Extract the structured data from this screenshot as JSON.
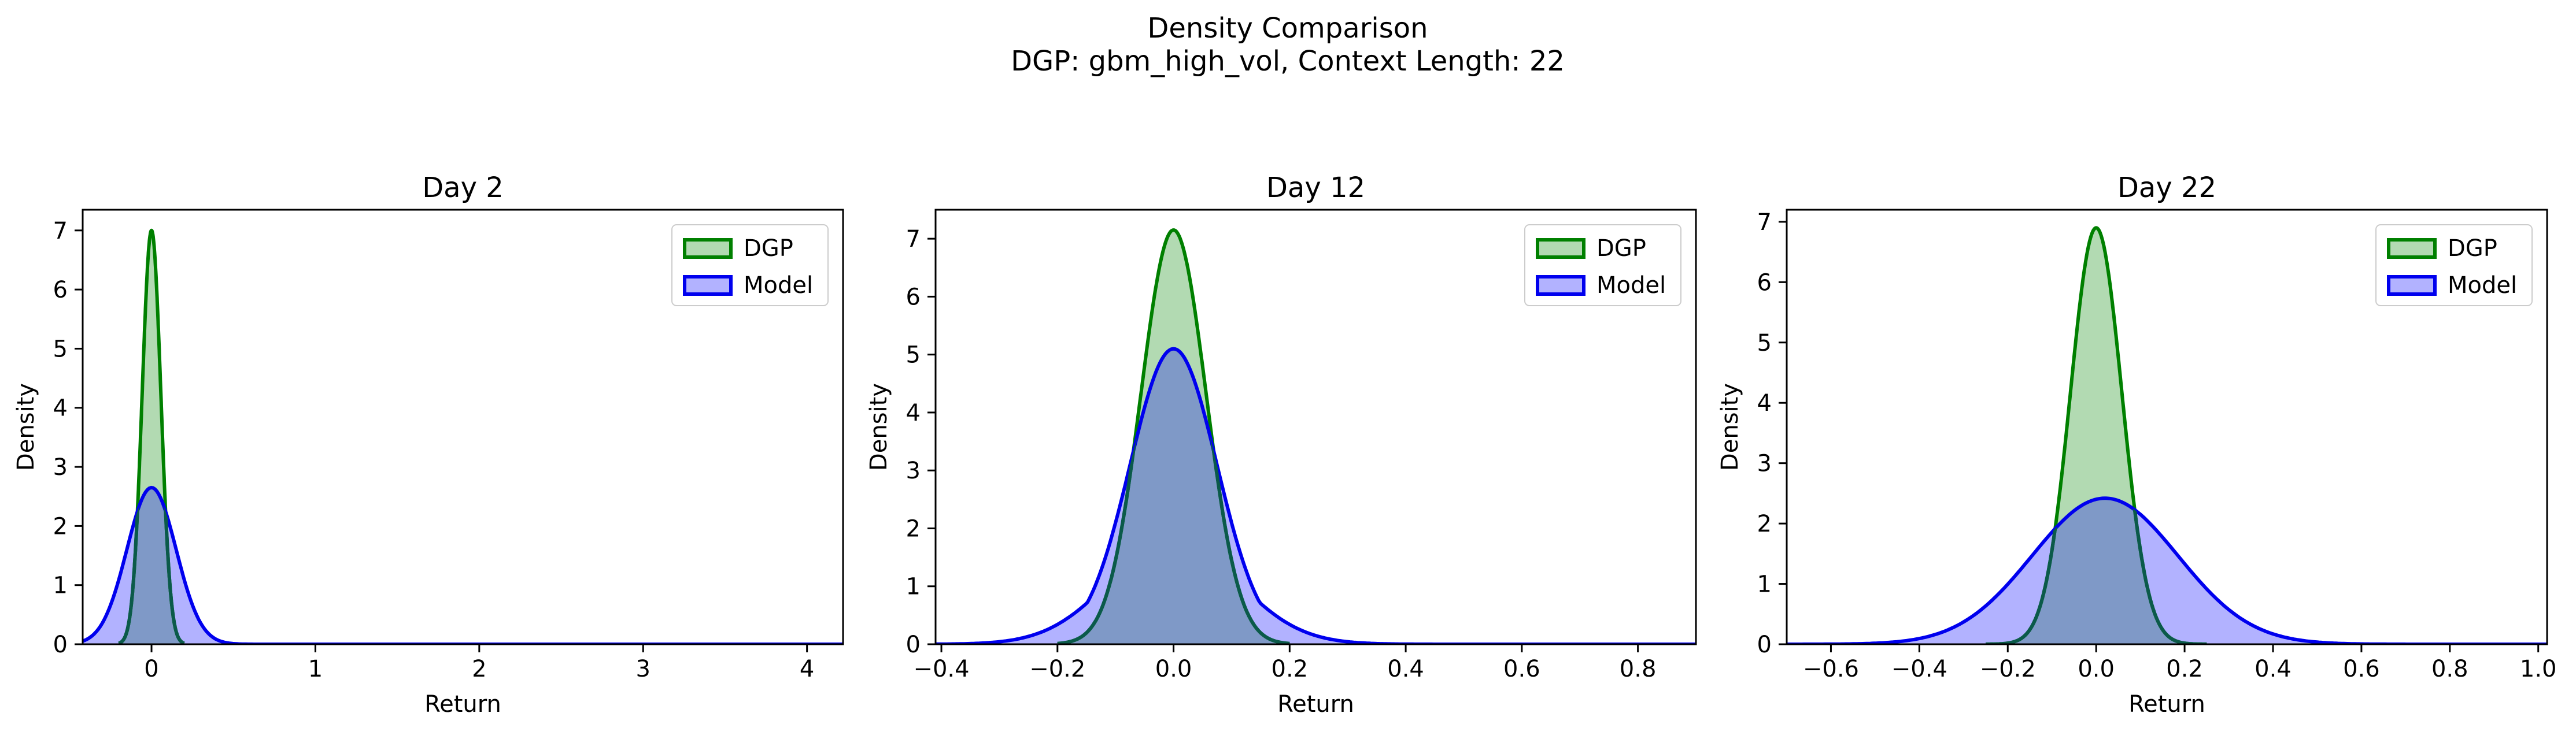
{
  "figure": {
    "title": "Density Comparison",
    "subtitle": "DGP: gbm_high_vol, Context Length: 22"
  },
  "colors": {
    "dgp_line": "#008000",
    "dgp_fill": "#b2dab2",
    "model_line": "#0000ee",
    "model_fill": "#b2b2ff",
    "overlap_fill": "#7f99c7"
  },
  "chart_data": [
    {
      "type": "area",
      "title": "Day 2",
      "xlabel": "Return",
      "ylabel": "Density",
      "xlim": [
        -0.42,
        4.22
      ],
      "ylim": [
        0,
        7.35
      ],
      "xticks": [
        0,
        1,
        2,
        3,
        4
      ],
      "xtick_labels": [
        "0",
        "1",
        "2",
        "3",
        "4"
      ],
      "yticks": [
        0,
        1,
        2,
        3,
        4,
        5,
        6,
        7
      ],
      "ytick_labels": [
        "0",
        "1",
        "2",
        "3",
        "4",
        "5",
        "6",
        "7"
      ],
      "legend": {
        "position": "upper right",
        "entries": [
          "DGP",
          "Model"
        ]
      },
      "series": [
        {
          "name": "DGP",
          "distribution": "gaussian",
          "mean": 0.0,
          "sd": 0.057,
          "peak": 7.0,
          "x_range": [
            -0.2,
            0.2
          ]
        },
        {
          "name": "Model",
          "distribution": "gaussian",
          "mean": 0.0,
          "sd": 0.15,
          "peak": 2.65,
          "x_range": [
            -0.42,
            4.22
          ]
        }
      ]
    },
    {
      "type": "area",
      "title": "Day 12",
      "xlabel": "Return",
      "ylabel": "Density",
      "xlim": [
        -0.41,
        0.9
      ],
      "ylim": [
        0,
        7.5
      ],
      "xticks": [
        -0.4,
        -0.2,
        0.0,
        0.2,
        0.4,
        0.6,
        0.8
      ],
      "xtick_labels": [
        "−0.4",
        "−0.2",
        "0.0",
        "0.2",
        "0.4",
        "0.6",
        "0.8"
      ],
      "yticks": [
        0,
        1,
        2,
        3,
        4,
        5,
        6,
        7
      ],
      "ytick_labels": [
        "0",
        "1",
        "2",
        "3",
        "4",
        "5",
        "6",
        "7"
      ],
      "legend": {
        "position": "upper right",
        "entries": [
          "DGP",
          "Model"
        ]
      },
      "series": [
        {
          "name": "DGP",
          "distribution": "gaussian",
          "mean": 0.0,
          "sd": 0.056,
          "peak": 7.15,
          "x_range": [
            -0.2,
            0.2
          ]
        },
        {
          "name": "Model",
          "distribution": "gaussian",
          "mean": 0.0,
          "sd": 0.075,
          "peak": 5.1,
          "tail_sd": 0.11,
          "x_range": [
            -0.41,
            0.9
          ]
        }
      ]
    },
    {
      "type": "area",
      "title": "Day 22",
      "xlabel": "Return",
      "ylabel": "Density",
      "xlim": [
        -0.7,
        1.02
      ],
      "ylim": [
        0,
        7.2
      ],
      "xticks": [
        -0.6,
        -0.4,
        -0.2,
        0.0,
        0.2,
        0.4,
        0.6,
        0.8,
        1.0
      ],
      "xtick_labels": [
        "−0.6",
        "−0.4",
        "−0.2",
        "0.0",
        "0.2",
        "0.4",
        "0.6",
        "0.8",
        "1.0"
      ],
      "yticks": [
        0,
        1,
        2,
        3,
        4,
        5,
        6,
        7
      ],
      "ytick_labels": [
        "0",
        "1",
        "2",
        "3",
        "4",
        "5",
        "6",
        "7"
      ],
      "legend": {
        "position": "upper right",
        "entries": [
          "DGP",
          "Model"
        ]
      },
      "series": [
        {
          "name": "DGP",
          "distribution": "gaussian",
          "mean": 0.0,
          "sd": 0.058,
          "peak": 6.9,
          "x_range": [
            -0.25,
            0.25
          ]
        },
        {
          "name": "Model",
          "distribution": "gaussian",
          "mean": 0.02,
          "sd": 0.165,
          "peak": 2.42,
          "x_range": [
            -0.7,
            1.02
          ]
        }
      ]
    }
  ]
}
